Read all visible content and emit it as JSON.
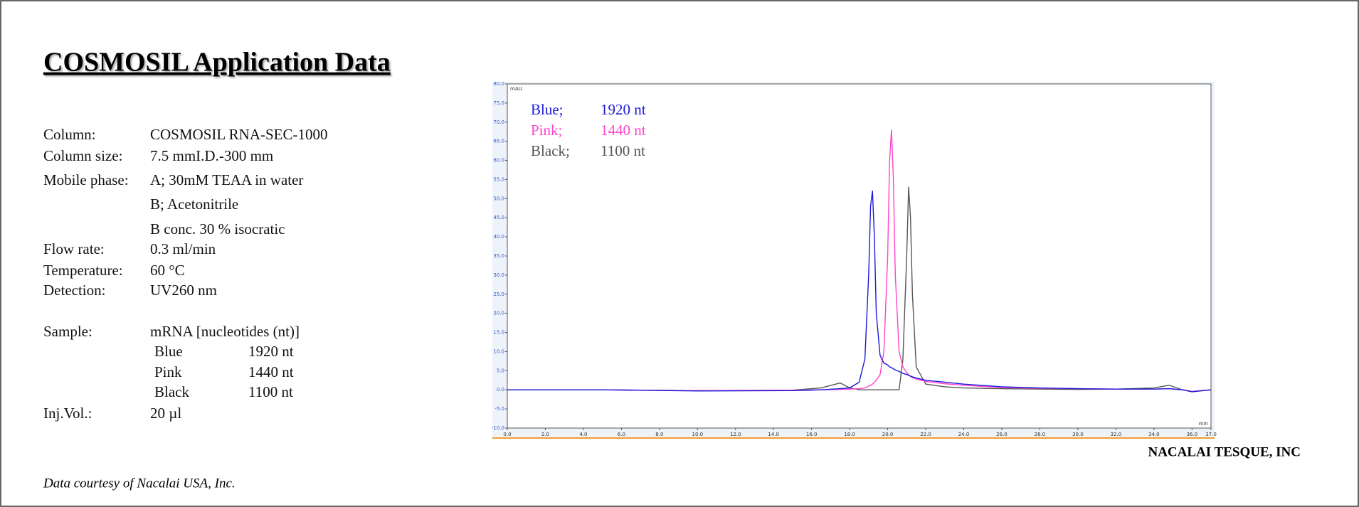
{
  "header": {
    "title": "COSMOSIL Application Data"
  },
  "conditions": {
    "column": {
      "label": "Column:",
      "value": "COSMOSIL RNA-SEC-1000"
    },
    "column_size": {
      "label": "Column size:",
      "value": "7.5 mmI.D.-300 mm"
    },
    "mobile_phase": {
      "label": "Mobile phase:",
      "lines": [
        "A; 30mM TEAA in water",
        "B; Acetonitrile",
        "B conc. 30 % isocratic"
      ]
    },
    "flow_rate": {
      "label": "Flow rate:",
      "value": "0.3 ml/min"
    },
    "temperature": {
      "label": "Temperature:",
      "value": "60 °C"
    },
    "detection": {
      "label": "Detection:",
      "value": "UV260 nm"
    },
    "sample": {
      "label": "Sample:",
      "value": "mRNA [nucleotides (nt)]",
      "rows": [
        [
          "Blue",
          "1920 nt"
        ],
        [
          "Pink",
          "1440 nt"
        ],
        [
          "Black",
          "1100 nt"
        ]
      ]
    },
    "inj_vol": {
      "label": "Inj.Vol.:",
      "value": "20 µl"
    }
  },
  "footer": {
    "credit": "Data courtesy of Nacalai USA, Inc.",
    "company": "NACALAI TESQUE, INC"
  },
  "chart_data": {
    "type": "line",
    "y_label": "mAU",
    "x_label": "min",
    "x": [
      0,
      5,
      10,
      15,
      16.5,
      17.5,
      18.0,
      18.5,
      18.8,
      19.0,
      19.1,
      19.2,
      19.3,
      19.4,
      19.6,
      19.8,
      20.0,
      20.1,
      20.2,
      20.3,
      20.4,
      20.6,
      20.8,
      21.0,
      21.1,
      21.2,
      21.3,
      21.5,
      22,
      23,
      24,
      26,
      28,
      30,
      32,
      34,
      34.8,
      35.5,
      36,
      37
    ],
    "series": [
      {
        "name": "Blue;",
        "label": "1920 nt",
        "color": "#1a1adb",
        "values": [
          0,
          0,
          -0.3,
          -0.2,
          0,
          0.3,
          0.5,
          2,
          8,
          30,
          48,
          52,
          40,
          20,
          9,
          7,
          6.5,
          6,
          5.8,
          5.5,
          5.2,
          4.8,
          4.3,
          4,
          3.8,
          3.6,
          3.4,
          3.1,
          2.5,
          2.0,
          1.5,
          0.8,
          0.5,
          0.3,
          0.2,
          0.2,
          0.3,
          0,
          -0.5,
          0
        ]
      },
      {
        "name": "Pink;",
        "label": "1440 nt",
        "color": "#ff44cc",
        "values": [
          0,
          0,
          -0.2,
          -0.1,
          0,
          0.1,
          0.2,
          0.3,
          0.5,
          1,
          1.2,
          1.5,
          2,
          2.5,
          4,
          10,
          35,
          60,
          68,
          55,
          30,
          10,
          6,
          4.5,
          4,
          3.5,
          3.2,
          2.8,
          2.2,
          1.6,
          1.2,
          0.6,
          0.4,
          0.3,
          0.2,
          0.2,
          0.3,
          0,
          -0.4,
          0
        ]
      },
      {
        "name": "Black;",
        "label": "1100 nt",
        "color": "#555555",
        "values": [
          0,
          0,
          -0.2,
          -0.1,
          0.5,
          1.8,
          0.5,
          0,
          0,
          0,
          0,
          0,
          0,
          0,
          0,
          0,
          0,
          0,
          0,
          0,
          0,
          0,
          8,
          35,
          53,
          45,
          25,
          6,
          1.5,
          0.8,
          0.5,
          0.3,
          0.2,
          0.1,
          0.2,
          0.5,
          1.2,
          0,
          -0.5,
          0
        ]
      }
    ],
    "xlim": [
      0,
      37
    ],
    "xticks": [
      {
        "value": 0,
        "label": "0.0"
      },
      {
        "value": 2,
        "label": "2.0"
      },
      {
        "value": 4,
        "label": "4.0"
      },
      {
        "value": 6,
        "label": "6.0"
      },
      {
        "value": 8,
        "label": "8.0"
      },
      {
        "value": 10,
        "label": "10.0"
      },
      {
        "value": 12,
        "label": "12.0"
      },
      {
        "value": 14,
        "label": "14.0"
      },
      {
        "value": 16,
        "label": "16.0"
      },
      {
        "value": 18,
        "label": "18.0"
      },
      {
        "value": 20,
        "label": "20.0"
      },
      {
        "value": 22,
        "label": "22.0"
      },
      {
        "value": 24,
        "label": "24.0"
      },
      {
        "value": 26,
        "label": "26.0"
      },
      {
        "value": 28,
        "label": "28.0"
      },
      {
        "value": 30,
        "label": "30.0"
      },
      {
        "value": 32,
        "label": "32.0"
      },
      {
        "value": 34,
        "label": "34.0"
      },
      {
        "value": 36,
        "label": "36.0"
      },
      {
        "value": 37,
        "label": "37.0"
      }
    ],
    "ylim": [
      -10,
      80
    ],
    "yticks": [
      {
        "value": -10,
        "label": "-10.0"
      },
      {
        "value": -5,
        "label": "-5.0"
      },
      {
        "value": 0,
        "label": "0.0"
      },
      {
        "value": 5,
        "label": "5.0"
      },
      {
        "value": 10,
        "label": "10.0"
      },
      {
        "value": 15,
        "label": "15.0"
      },
      {
        "value": 20,
        "label": "20.0"
      },
      {
        "value": 25,
        "label": "25.0"
      },
      {
        "value": 30,
        "label": "30.0"
      },
      {
        "value": 35,
        "label": "35.0"
      },
      {
        "value": 40,
        "label": "40.0"
      },
      {
        "value": 45,
        "label": "45.0"
      },
      {
        "value": 50,
        "label": "50.0"
      },
      {
        "value": 55,
        "label": "55.0"
      },
      {
        "value": 60,
        "label": "60.0"
      },
      {
        "value": 65,
        "label": "65.0"
      },
      {
        "value": 70,
        "label": "70.0"
      },
      {
        "value": 75,
        "label": "75.0"
      },
      {
        "value": 80,
        "label": "80.0"
      }
    ],
    "grid": false
  }
}
